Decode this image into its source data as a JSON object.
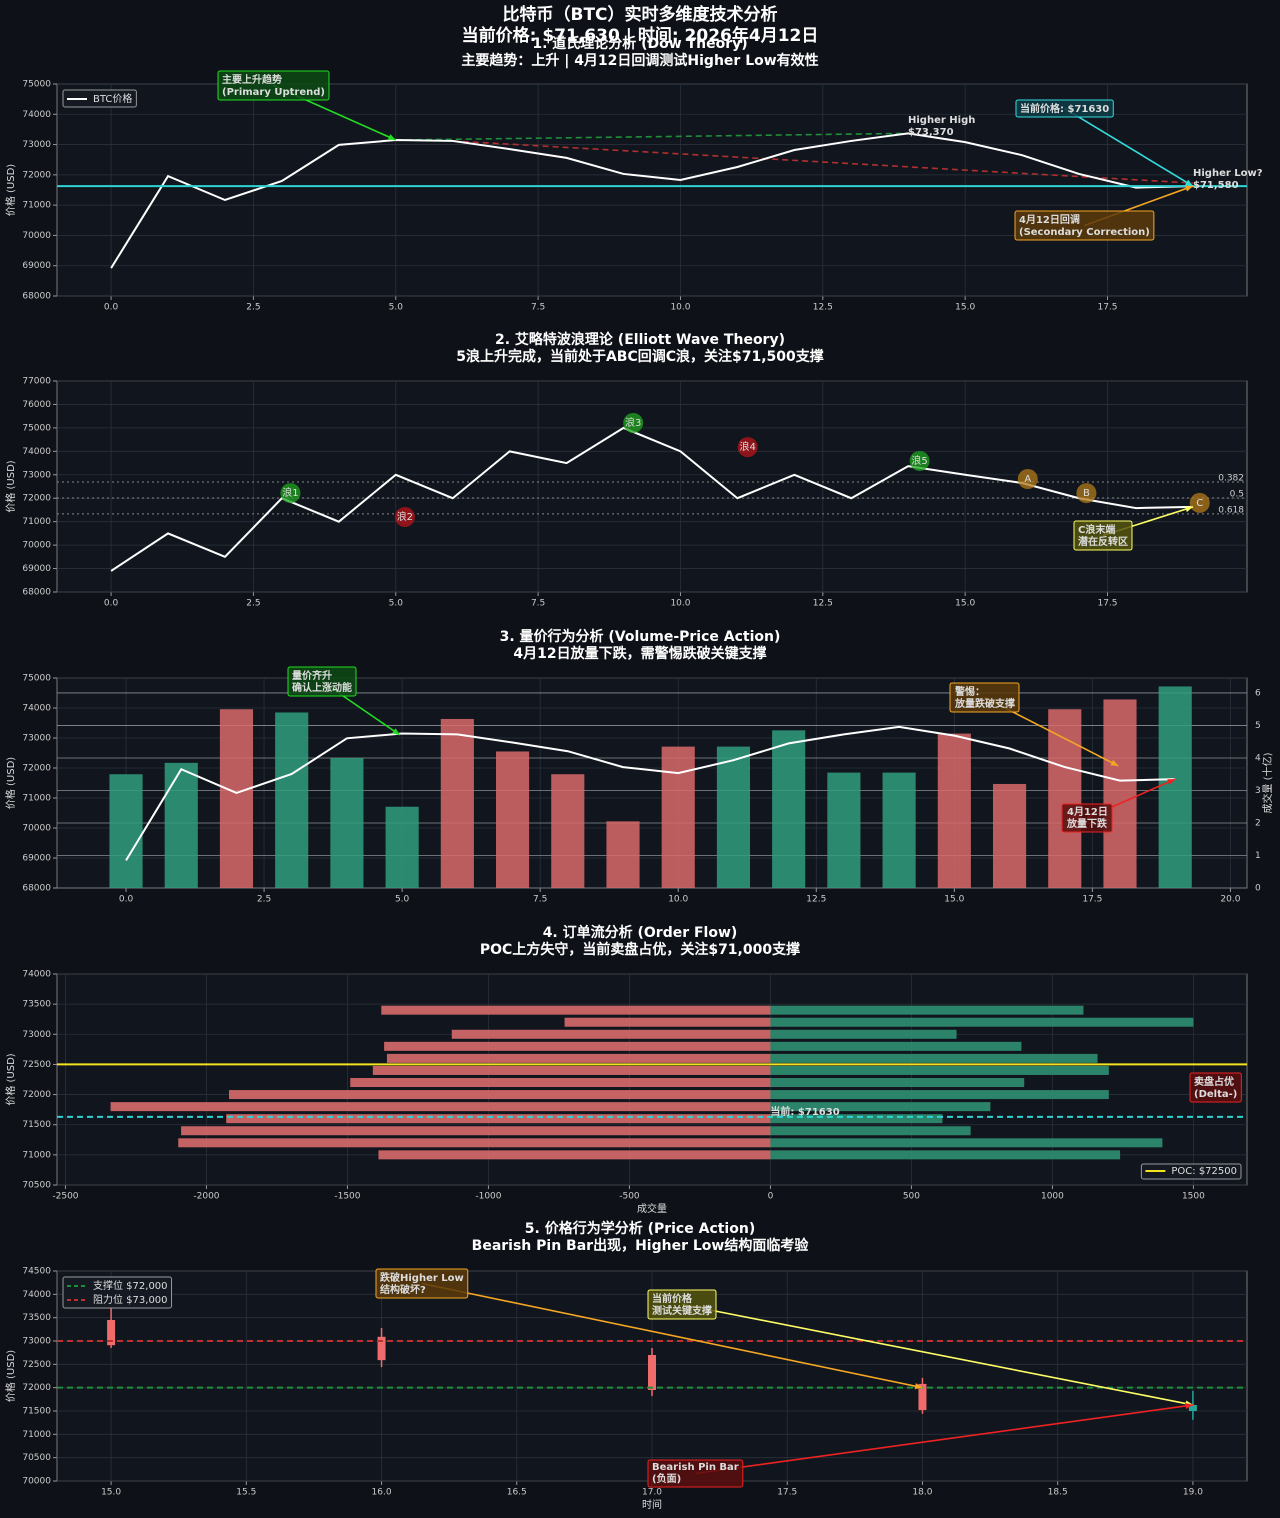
{
  "page": {
    "title": "比特币（BTC）实时多维度技术分析",
    "subtitle": "当前价格: $71,630 | 时间: 2026年4月12日"
  },
  "chart_data": [
    {
      "type": "line",
      "title": "1. 道氏理论分析 (Dow Theory)",
      "subtitle": "主要趋势：上升 | 4月12日回调测试Higher Low有效性",
      "ylabel": "价格 (USD)",
      "x": [
        0,
        1,
        2,
        3,
        4,
        5,
        6,
        7,
        8,
        9,
        10,
        11,
        12,
        13,
        14,
        15,
        16,
        17,
        18,
        19
      ],
      "series": [
        {
          "name": "BTC价格",
          "color": "#ffffff",
          "values": [
            68920,
            71960,
            71170,
            71800,
            72990,
            73150,
            73120,
            72850,
            72560,
            72030,
            71830,
            72260,
            72820,
            73120,
            73370,
            73080,
            72650,
            72030,
            71580,
            71630
          ]
        }
      ],
      "trend_lines": [
        {
          "x": [
            5,
            14
          ],
          "values": [
            73150,
            73370
          ],
          "color": "#1f8f3a"
        },
        {
          "x": [
            6,
            19
          ],
          "values": [
            73120,
            71730
          ],
          "color": "#b03030"
        }
      ],
      "hlines": [
        {
          "value": 71630,
          "color": "#2ed3d3"
        }
      ],
      "annotations": [
        {
          "text": [
            "主要上升趋势",
            "(Primary Uptrend)"
          ],
          "color": "#22dd22",
          "box": "#0c4a14",
          "xy": [
            5,
            73150
          ]
        },
        {
          "text": [
            "Higher High",
            "$73,370"
          ],
          "color": "#22dd22"
        },
        {
          "text": [
            "当前价格: $71630"
          ],
          "color": "#33dddd",
          "box": "#0e3c46",
          "xy": [
            19,
            71630
          ]
        },
        {
          "text": [
            "Higher Low?",
            "$71,580"
          ],
          "color": "#ee2222"
        },
        {
          "text": [
            "4月12日回调",
            "(Secondary Correction)"
          ],
          "color": "#f5a623",
          "box": "#5a3a0a",
          "xy": [
            19,
            71630
          ]
        }
      ],
      "xlim": [
        -0.95,
        19.95
      ],
      "ylim": [
        68000,
        75000
      ],
      "xticks": [
        {
          "value": 0,
          "label": "0.0"
        },
        2.5,
        {
          "value": 5,
          "label": "5.0"
        },
        7.5,
        {
          "value": 10,
          "label": "10.0"
        },
        12.5,
        {
          "value": 15,
          "label": "15.0"
        },
        17.5
      ],
      "yticks": [
        68000,
        69000,
        70000,
        71000,
        72000,
        73000,
        74000,
        75000
      ],
      "grid": true,
      "legend": "upper left"
    },
    {
      "type": "line",
      "title": "2. 艾略特波浪理论 (Elliott Wave Theory)",
      "subtitle": "5浪上升完成，当前处于ABC回调C浪，关注$71,500支撑",
      "ylabel": "价格 (USD)",
      "x": [
        0,
        1,
        2,
        3,
        4,
        5,
        6,
        7,
        8,
        9,
        10,
        11,
        12,
        13,
        14,
        15,
        16,
        17,
        18,
        19
      ],
      "series": [
        {
          "color": "#ffffff",
          "values": [
            68900,
            70500,
            69500,
            72000,
            71000,
            73000,
            72000,
            74000,
            73500,
            75000,
            74000,
            72000,
            73000,
            72000,
            73370,
            73000,
            72650,
            72000,
            71580,
            71630
          ]
        }
      ],
      "fib_levels": [
        {
          "ratio": 0.382,
          "value": 72690
        },
        {
          "ratio": 0.5,
          "value": 72010
        },
        {
          "ratio": 0.618,
          "value": 71330
        }
      ],
      "wave_labels": [
        {
          "label": "浪1",
          "x": 3.15,
          "y": 72220,
          "color": "#1fa51f"
        },
        {
          "label": "浪2",
          "x": 5.16,
          "y": 71200,
          "color": "#b8141a"
        },
        {
          "label": "浪3",
          "x": 9.17,
          "y": 75210,
          "color": "#1fa51f"
        },
        {
          "label": "浪4",
          "x": 11.18,
          "y": 74180,
          "color": "#b8141a"
        },
        {
          "label": "浪5",
          "x": 14.2,
          "y": 73590,
          "color": "#1fa51f"
        },
        {
          "label": "A",
          "x": 16.1,
          "y": 72820,
          "color": "#b07a1a"
        },
        {
          "label": "B",
          "x": 17.13,
          "y": 72220,
          "color": "#b07a1a"
        },
        {
          "label": "C",
          "x": 19.12,
          "y": 71800,
          "color": "#b07a1a"
        }
      ],
      "annotations": [
        {
          "text": [
            "C浪末端",
            "潜在反转区"
          ],
          "color": "#ffff66",
          "box": "#55550e",
          "xy": [
            19,
            71630
          ]
        }
      ],
      "xlim": [
        -0.95,
        19.95
      ],
      "ylim": [
        68000,
        77000
      ],
      "xticks": [
        {
          "value": 0,
          "label": "0.0"
        },
        2.5,
        {
          "value": 5,
          "label": "5.0"
        },
        7.5,
        {
          "value": 10,
          "label": "10.0"
        },
        12.5,
        {
          "value": 15,
          "label": "15.0"
        },
        17.5
      ],
      "yticks": [
        68000,
        69000,
        70000,
        71000,
        72000,
        73000,
        74000,
        75000,
        76000,
        77000
      ],
      "grid": true
    },
    {
      "type": "combo",
      "title": "3. 量价行为分析 (Volume-Price Action)",
      "subtitle": "4月12日放量下跌，需警惕跌破关键支撑",
      "ylabel": "价格 (USD)",
      "y2label": "成交量 (十亿)",
      "x": [
        0,
        1,
        2,
        3,
        4,
        5,
        6,
        7,
        8,
        9,
        10,
        11,
        12,
        13,
        14,
        15,
        16,
        17,
        18,
        19
      ],
      "series": [
        {
          "kind": "bar",
          "axis": "y2",
          "colors": [
            "#2f9d7e",
            "#2f9d7e",
            "#d96a6a",
            "#2f9d7e",
            "#2f9d7e",
            "#2f9d7e",
            "#d96a6a",
            "#d96a6a",
            "#d96a6a",
            "#d96a6a",
            "#d96a6a",
            "#2f9d7e",
            "#2f9d7e",
            "#2f9d7e",
            "#2f9d7e",
            "#d96a6a",
            "#d96a6a",
            "#d96a6a",
            "#d96a6a",
            "#2f9d7e"
          ],
          "values": [
            3.5,
            3.85,
            5.5,
            5.4,
            4.0,
            2.5,
            5.2,
            4.2,
            3.5,
            2.05,
            4.35,
            4.35,
            4.85,
            3.55,
            3.55,
            4.75,
            3.2,
            5.5,
            5.8,
            6.2
          ]
        },
        {
          "kind": "line",
          "color": "#ffffff",
          "values": [
            68920,
            71960,
            71170,
            71800,
            72990,
            73150,
            73120,
            72850,
            72560,
            72030,
            71830,
            72260,
            72820,
            73120,
            73370,
            73080,
            72650,
            72030,
            71580,
            71630
          ]
        }
      ],
      "annotations": [
        {
          "text": [
            "量价齐升",
            "确认上涨动能"
          ],
          "color": "#22dd22",
          "box": "#0c4a14",
          "xy": [
            4.96,
            73100
          ]
        },
        {
          "text": [
            "警惕：",
            "放量跌破支撑"
          ],
          "color": "#f5a623",
          "box": "#5a3a0a",
          "xy": [
            17.97,
            72070
          ]
        },
        {
          "text": [
            "4月12日",
            "放量下跌"
          ],
          "color": "#ee2222",
          "box": "#5a0e0e",
          "xy": [
            19,
            71630
          ]
        }
      ],
      "xlim": [
        -1.25,
        20.3
      ],
      "ylim": [
        68000,
        75000
      ],
      "y2lim": [
        0,
        6.46
      ],
      "xticks": [
        {
          "value": 0,
          "label": "0.0"
        },
        2.5,
        {
          "value": 5,
          "label": "5.0"
        },
        7.5,
        {
          "value": 10,
          "label": "10.0"
        },
        12.5,
        {
          "value": 15,
          "label": "15.0"
        },
        17.5,
        {
          "value": 20,
          "label": "20.0"
        }
      ],
      "yticks": [
        68000,
        69000,
        70000,
        71000,
        72000,
        73000,
        74000,
        75000
      ],
      "y2ticks": [
        0,
        1,
        2,
        3,
        4,
        5,
        6
      ],
      "grid": true
    },
    {
      "type": "barh",
      "title": "4. 订单流分析 (Order Flow)",
      "subtitle": "POC上方失守，当前卖盘占优，关注$71,000支撑",
      "ylabel": "价格 (USD)",
      "xlabel": "成交量",
      "y": [
        73400,
        73200,
        73000,
        72800,
        72600,
        72400,
        72200,
        72000,
        71800,
        71600,
        71400,
        71200,
        71000
      ],
      "series": [
        {
          "color": "#d96a6a",
          "values": [
            -1380,
            -730,
            -1130,
            -1370,
            -1360,
            -1410,
            -1490,
            -1920,
            -2340,
            -1930,
            -2090,
            -2100,
            -1390
          ]
        },
        {
          "color": "#2f8f72",
          "values": [
            1110,
            1500,
            660,
            890,
            1160,
            1200,
            900,
            1200,
            780,
            610,
            710,
            1390,
            1240
          ]
        }
      ],
      "hlines": [
        {
          "value": 72500,
          "color": "#f5e320",
          "name": "POC: $72500"
        },
        {
          "value": 71630,
          "color": "#2ed3d3",
          "dash": true,
          "label": "当前: $71630"
        }
      ],
      "annotations": [
        {
          "text": [
            "卖盘占优",
            "(Delta-)"
          ],
          "color": "#ee2222",
          "box": "#5a0e0e"
        }
      ],
      "xlim": [
        -2530,
        1690
      ],
      "ylim": [
        70500,
        74000
      ],
      "xticks": [
        -2500,
        -2000,
        -1500,
        -1000,
        -500,
        0,
        500,
        1000,
        1500
      ],
      "yticks": [
        70500,
        71000,
        71500,
        72000,
        72500,
        73000,
        73500,
        74000
      ],
      "grid": true,
      "legend": "lower right"
    },
    {
      "type": "candlestick",
      "title": "5. 价格行为学分析 (Price Action)",
      "subtitle": "Bearish Pin Bar出现，Higher Low结构面临考验",
      "ylabel": "价格 (USD)",
      "xlabel": "时间",
      "x": [
        15,
        16,
        17,
        18,
        19
      ],
      "open": [
        73450,
        73090,
        72700,
        72080,
        71500
      ],
      "high": [
        73710,
        73280,
        72850,
        72210,
        71930
      ],
      "low": [
        72850,
        72440,
        71820,
        71440,
        71310
      ],
      "close": [
        72910,
        72590,
        71950,
        71520,
        71630
      ],
      "up_color": "#26a69a",
      "down_color": "#f06b6b",
      "hlines": [
        {
          "value": 72000,
          "color": "#1f8f3a",
          "dash": true,
          "name": "支撑位 $72,000"
        },
        {
          "value": 73000,
          "color": "#c03030",
          "dash": true,
          "name": "阻力位 $73,000"
        }
      ],
      "annotations": [
        {
          "text": [
            "跌破Higher Low",
            "结构破坏?"
          ],
          "color": "#f5a623",
          "box": "#5a3a0a",
          "xy": [
            18,
            72000
          ]
        },
        {
          "text": [
            "当前价格",
            "测试关键支撑"
          ],
          "color": "#ffff66",
          "box": "#55550e",
          "xy": [
            19,
            71630
          ]
        },
        {
          "text": [
            "Bearish Pin Bar",
            "(负面)"
          ],
          "color": "#ee2222",
          "box": "#5a0e0e",
          "xy": [
            19,
            71630
          ]
        }
      ],
      "xlim": [
        14.8,
        19.2
      ],
      "ylim": [
        70000,
        74500
      ],
      "xticks": [
        {
          "value": 15,
          "label": "15.0"
        },
        15.5,
        {
          "value": 16,
          "label": "16.0"
        },
        16.5,
        {
          "value": 17,
          "label": "17.0"
        },
        17.5,
        {
          "value": 18,
          "label": "18.0"
        },
        18.5,
        {
          "value": 19,
          "label": "19.0"
        }
      ],
      "yticks": [
        70000,
        70500,
        71000,
        71500,
        72000,
        72500,
        73000,
        73500,
        74000,
        74500
      ],
      "grid": true,
      "legend": "upper left"
    }
  ]
}
